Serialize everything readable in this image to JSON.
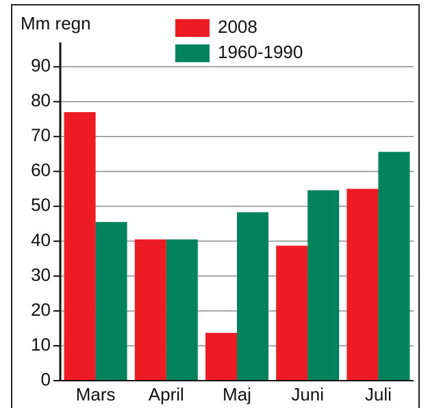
{
  "chart_data": {
    "type": "bar",
    "y_label": "Mm regn",
    "categories": [
      "Mars",
      "April",
      "Maj",
      "Juni",
      "Juli"
    ],
    "series": [
      {
        "name": "2008",
        "color": "#ed1c24",
        "values": [
          77,
          40.5,
          13.7,
          38.7,
          55
        ]
      },
      {
        "name": "1960-1990",
        "color": "#00835a",
        "values": [
          45.5,
          40.5,
          48.3,
          54.6,
          65.6
        ]
      }
    ],
    "ylim": [
      0,
      97
    ],
    "yticks": [
      0,
      10,
      20,
      30,
      40,
      50,
      60,
      70,
      80,
      90
    ],
    "grid": true
  }
}
